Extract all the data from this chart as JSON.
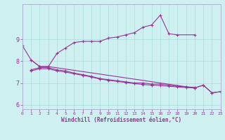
{
  "xlabel": "Windchill (Refroidissement éolien,°C)",
  "xlim": [
    0,
    23
  ],
  "ylim": [
    5.8,
    10.6
  ],
  "yticks": [
    6,
    7,
    8,
    9
  ],
  "xticks": [
    0,
    1,
    2,
    3,
    4,
    5,
    6,
    7,
    8,
    9,
    10,
    11,
    12,
    13,
    14,
    15,
    16,
    17,
    18,
    19,
    20,
    21,
    22,
    23
  ],
  "bg_color": "#cef0f0",
  "line_color": "#993399",
  "grid_color": "#aadddd",
  "series1_x": [
    1,
    2,
    3,
    4,
    5,
    6,
    7,
    8,
    9,
    10,
    11,
    12,
    13,
    14,
    15,
    16,
    17,
    18,
    20
  ],
  "series1_y": [
    8.05,
    7.75,
    7.75,
    8.35,
    8.6,
    8.85,
    8.9,
    8.9,
    8.9,
    9.05,
    9.1,
    9.2,
    9.3,
    9.55,
    9.65,
    10.1,
    9.25,
    9.2,
    9.2
  ],
  "series2_x": [
    1,
    2,
    3,
    4,
    5,
    6,
    7,
    8,
    9,
    10,
    11,
    12,
    13,
    14,
    15,
    16,
    17,
    18,
    19,
    20
  ],
  "series2_y": [
    7.6,
    7.7,
    7.7,
    7.6,
    7.55,
    7.45,
    7.38,
    7.3,
    7.2,
    7.15,
    7.1,
    7.05,
    7.0,
    7.0,
    6.95,
    6.95,
    6.9,
    6.85,
    6.82,
    6.8
  ],
  "series3_x": [
    1,
    2,
    3,
    4,
    5,
    6,
    7,
    8,
    9,
    10,
    11,
    12,
    13,
    14,
    15,
    16,
    17,
    18,
    19,
    20,
    21,
    22,
    23
  ],
  "series3_y": [
    7.55,
    7.65,
    7.65,
    7.55,
    7.5,
    7.42,
    7.35,
    7.27,
    7.18,
    7.12,
    7.07,
    7.02,
    6.97,
    6.93,
    6.9,
    6.88,
    6.85,
    6.82,
    6.79,
    6.77,
    6.9,
    6.55,
    6.6
  ],
  "series4_x": [
    0,
    1,
    2,
    3,
    20,
    21,
    22,
    23
  ],
  "series4_y": [
    8.7,
    8.05,
    7.75,
    7.75,
    6.77,
    6.9,
    6.55,
    6.6
  ]
}
